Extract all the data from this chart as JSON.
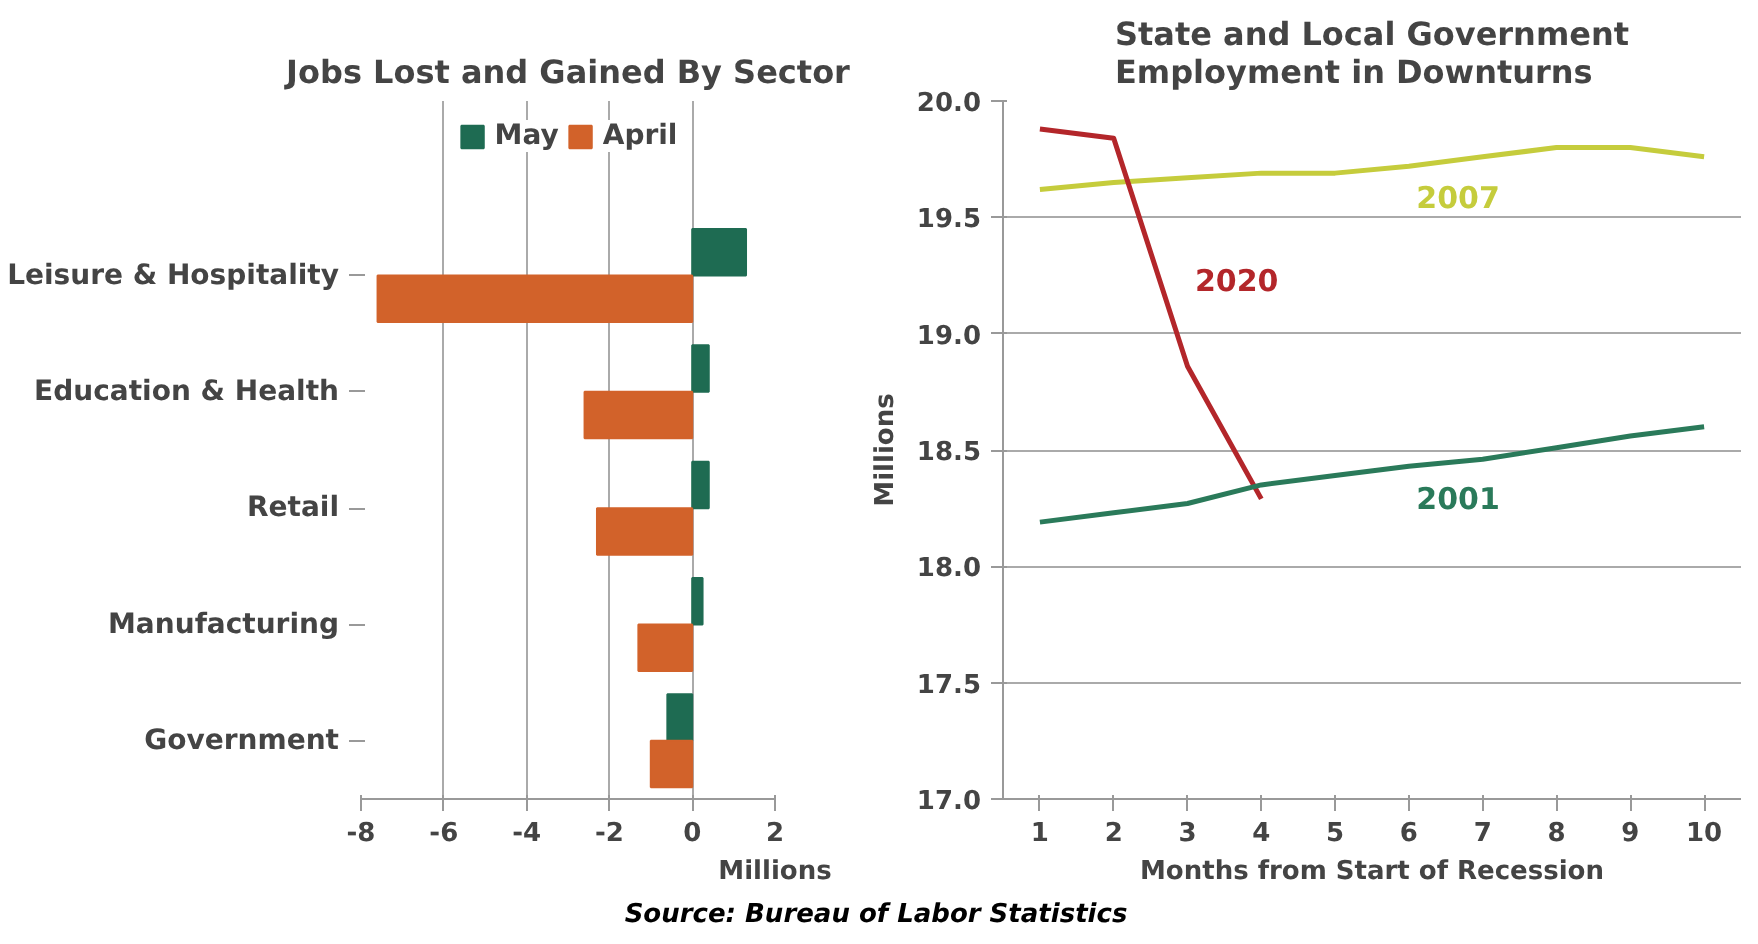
{
  "chart_data": [
    {
      "type": "bar",
      "orientation": "horizontal",
      "title": "Jobs Lost and Gained By Sector",
      "xlabel": "Millions",
      "categories": [
        "Leisure & Hospitality",
        "Education & Health",
        "Retail",
        "Manufacturing",
        "Government"
      ],
      "series": [
        {
          "name": "May",
          "color": "#1e6b52",
          "values": [
            1.3,
            0.4,
            0.4,
            0.25,
            -0.6
          ]
        },
        {
          "name": "April",
          "color": "#d2622a",
          "values": [
            -7.6,
            -2.6,
            -2.3,
            -1.3,
            -1.0
          ]
        }
      ],
      "xlim": [
        -8,
        2
      ],
      "xticks": [
        -8,
        -6,
        -4,
        -2,
        0,
        2
      ],
      "grid": "x",
      "legend": "top"
    },
    {
      "type": "line",
      "title": "State and Local Government Employment in Downturns",
      "xlabel": "Months from Start of Recession",
      "ylabel": "Millions",
      "categories": [
        "1",
        "2",
        "3",
        "4",
        "5",
        "6",
        "7",
        "8",
        "9",
        "10"
      ],
      "series": [
        {
          "name": "2007",
          "color": "#c5cc3c",
          "values": [
            19.62,
            19.65,
            19.67,
            19.69,
            19.69,
            19.72,
            19.76,
            19.8,
            19.8,
            19.76
          ]
        },
        {
          "name": "2020",
          "color": "#b3262a",
          "values": [
            19.88,
            19.84,
            18.86,
            18.29,
            null,
            null,
            null,
            null,
            null,
            null
          ]
        },
        {
          "name": "2001",
          "color": "#2a7a5a",
          "values": [
            18.19,
            18.23,
            18.27,
            18.35,
            18.39,
            18.43,
            18.46,
            18.51,
            18.56,
            18.6
          ]
        }
      ],
      "ylim": [
        17.0,
        20.0
      ],
      "yticks": [
        {
          "value": 17.0,
          "label": "17.0"
        },
        {
          "value": 17.5,
          "label": "17.5"
        },
        {
          "value": 18.0,
          "label": "18.0"
        },
        {
          "value": 18.5,
          "label": "18.5"
        },
        {
          "value": 19.0,
          "label": "19.0"
        },
        {
          "value": 19.5,
          "label": "19.5"
        },
        {
          "value": 20.0,
          "label": "20.0"
        }
      ],
      "grid": "y",
      "legend": false,
      "annotations": [
        "Source: Bureau of Labor Statistics"
      ]
    }
  ]
}
